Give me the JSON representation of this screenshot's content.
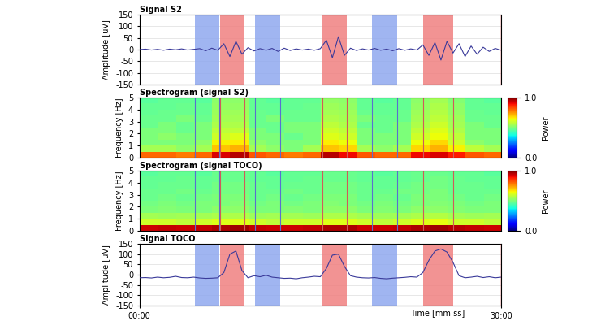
{
  "chart_data": [
    {
      "type": "line",
      "title": "Signal S2",
      "y_label": "Amplitude [uV]",
      "xlim": [
        0,
        30
      ],
      "ylim": [
        -150,
        150
      ],
      "yticks": [
        -150,
        -100,
        -50,
        0,
        50,
        100,
        150
      ],
      "grid": true,
      "tick_labels": "y",
      "color": "#3a3a9a",
      "x": [
        0,
        0.5,
        1,
        1.5,
        2,
        2.5,
        3,
        3.5,
        4,
        4.5,
        5,
        5.5,
        6,
        6.5,
        7,
        7.5,
        8,
        8.5,
        9,
        9.5,
        10,
        10.5,
        11,
        11.5,
        12,
        12.5,
        13,
        13.5,
        14,
        14.5,
        15,
        15.5,
        16,
        16.5,
        17,
        17.5,
        18,
        18.5,
        19,
        19.5,
        20,
        20.5,
        21,
        21.5,
        22,
        22.5,
        23,
        23.5,
        24,
        24.5,
        25,
        25.5,
        26,
        26.5,
        27,
        27.5,
        28,
        28.5,
        29,
        29.5,
        30
      ],
      "values": [
        0,
        2,
        -2,
        1,
        -3,
        2,
        -1,
        3,
        -2,
        1,
        4,
        -5,
        6,
        -3,
        25,
        -30,
        35,
        -20,
        8,
        -6,
        4,
        -3,
        5,
        -8,
        6,
        -4,
        3,
        -2,
        2,
        -3,
        4,
        40,
        -35,
        55,
        -25,
        6,
        -4,
        3,
        -2,
        5,
        -3,
        2,
        -5,
        4,
        -3,
        3,
        -2,
        20,
        -25,
        30,
        -45,
        35,
        -15,
        25,
        -30,
        15,
        -20,
        10,
        -8,
        5,
        -3
      ],
      "bands": [
        {
          "start": 4.6,
          "end": 6.6,
          "color": "#8fa8ef"
        },
        {
          "start": 6.7,
          "end": 8.7,
          "color": "#f08080"
        },
        {
          "start": 9.6,
          "end": 11.7,
          "color": "#8fa8ef"
        },
        {
          "start": 15.2,
          "end": 17.2,
          "color": "#f08080"
        },
        {
          "start": 19.3,
          "end": 21.4,
          "color": "#8fa8ef"
        },
        {
          "start": 23.5,
          "end": 26.0,
          "color": "#f08080"
        }
      ],
      "cursor": 30
    },
    {
      "type": "heatmap",
      "title": "Spectrogram (signal S2)",
      "y_label": "Frequency [Hz]",
      "xlim": [
        0,
        30
      ],
      "ylim": [
        0,
        5
      ],
      "yticks": [
        0,
        1,
        2,
        3,
        4,
        5
      ],
      "tick_labels": "y",
      "cells": [
        [
          0.8,
          0.8,
          0.78,
          0.8,
          0.92,
          0.95,
          0.82,
          0.8,
          0.78,
          0.8,
          0.95,
          0.9,
          0.82,
          0.8,
          0.8,
          0.9,
          0.92,
          0.88,
          0.82,
          0.8
        ],
        [
          0.55,
          0.55,
          0.52,
          0.55,
          0.7,
          0.72,
          0.55,
          0.52,
          0.5,
          0.55,
          0.7,
          0.68,
          0.55,
          0.52,
          0.55,
          0.68,
          0.72,
          0.65,
          0.58,
          0.55
        ],
        [
          0.5,
          0.5,
          0.5,
          0.52,
          0.65,
          0.66,
          0.52,
          0.5,
          0.5,
          0.5,
          0.66,
          0.64,
          0.5,
          0.5,
          0.5,
          0.64,
          0.68,
          0.6,
          0.52,
          0.5
        ],
        [
          0.5,
          0.52,
          0.5,
          0.5,
          0.6,
          0.62,
          0.5,
          0.5,
          0.48,
          0.5,
          0.62,
          0.6,
          0.5,
          0.5,
          0.5,
          0.6,
          0.64,
          0.58,
          0.5,
          0.5
        ],
        [
          0.5,
          0.5,
          0.48,
          0.5,
          0.58,
          0.58,
          0.5,
          0.48,
          0.5,
          0.5,
          0.6,
          0.58,
          0.5,
          0.48,
          0.5,
          0.58,
          0.62,
          0.56,
          0.5,
          0.5
        ],
        [
          0.48,
          0.5,
          0.48,
          0.5,
          0.56,
          0.56,
          0.48,
          0.48,
          0.5,
          0.5,
          0.58,
          0.56,
          0.48,
          0.48,
          0.5,
          0.56,
          0.6,
          0.55,
          0.5,
          0.48
        ],
        [
          0.48,
          0.48,
          0.5,
          0.48,
          0.55,
          0.55,
          0.48,
          0.5,
          0.48,
          0.48,
          0.56,
          0.55,
          0.5,
          0.48,
          0.48,
          0.55,
          0.58,
          0.54,
          0.48,
          0.48
        ],
        [
          0.47,
          0.48,
          0.48,
          0.47,
          0.54,
          0.54,
          0.48,
          0.47,
          0.48,
          0.48,
          0.55,
          0.54,
          0.48,
          0.47,
          0.48,
          0.54,
          0.57,
          0.53,
          0.48,
          0.47
        ],
        [
          0.47,
          0.47,
          0.48,
          0.47,
          0.53,
          0.53,
          0.47,
          0.47,
          0.47,
          0.48,
          0.54,
          0.53,
          0.47,
          0.47,
          0.47,
          0.53,
          0.56,
          0.52,
          0.47,
          0.47
        ],
        [
          0.46,
          0.47,
          0.47,
          0.46,
          0.52,
          0.52,
          0.47,
          0.46,
          0.47,
          0.47,
          0.53,
          0.52,
          0.47,
          0.46,
          0.47,
          0.52,
          0.55,
          0.51,
          0.47,
          0.46
        ]
      ],
      "colorbar": {
        "label": "Power",
        "range": [
          0,
          1
        ],
        "ticks": [
          {
            "value": 0,
            "label": "0.0"
          },
          {
            "value": 1,
            "label": "1.0"
          }
        ]
      },
      "bands": [
        {
          "start": 4.6,
          "end": 6.6,
          "color": "#5a6fd0"
        },
        {
          "start": 6.7,
          "end": 8.7,
          "color": "#d05a5a"
        },
        {
          "start": 9.6,
          "end": 11.7,
          "color": "#5a6fd0"
        },
        {
          "start": 15.2,
          "end": 17.2,
          "color": "#d05a5a"
        },
        {
          "start": 19.3,
          "end": 21.4,
          "color": "#5a6fd0"
        },
        {
          "start": 23.5,
          "end": 26.0,
          "color": "#d05a5a"
        }
      ]
    },
    {
      "type": "heatmap",
      "title": "Spectrogram (signal TOCO)",
      "y_label": "Frequency [Hz]",
      "xlim": [
        0,
        30
      ],
      "ylim": [
        0,
        5
      ],
      "yticks": [
        0,
        1,
        2,
        3,
        4,
        5
      ],
      "tick_labels": "y",
      "cells": [
        [
          0.93,
          0.94,
          0.93,
          0.94,
          0.96,
          0.97,
          0.94,
          0.93,
          0.93,
          0.94,
          0.96,
          0.96,
          0.93,
          0.93,
          0.94,
          0.96,
          0.97,
          0.95,
          0.94,
          0.93
        ],
        [
          0.6,
          0.6,
          0.58,
          0.6,
          0.62,
          0.62,
          0.6,
          0.58,
          0.6,
          0.6,
          0.62,
          0.62,
          0.6,
          0.58,
          0.6,
          0.62,
          0.63,
          0.6,
          0.6,
          0.58
        ],
        [
          0.55,
          0.54,
          0.55,
          0.55,
          0.56,
          0.56,
          0.54,
          0.55,
          0.55,
          0.54,
          0.56,
          0.56,
          0.55,
          0.54,
          0.55,
          0.56,
          0.57,
          0.55,
          0.54,
          0.55
        ],
        [
          0.5,
          0.51,
          0.5,
          0.5,
          0.52,
          0.52,
          0.5,
          0.5,
          0.51,
          0.5,
          0.52,
          0.52,
          0.5,
          0.51,
          0.5,
          0.52,
          0.52,
          0.51,
          0.5,
          0.5
        ],
        [
          0.49,
          0.5,
          0.49,
          0.5,
          0.5,
          0.51,
          0.49,
          0.5,
          0.49,
          0.5,
          0.51,
          0.5,
          0.49,
          0.5,
          0.49,
          0.5,
          0.51,
          0.5,
          0.49,
          0.5
        ],
        [
          0.48,
          0.49,
          0.48,
          0.49,
          0.5,
          0.5,
          0.48,
          0.49,
          0.48,
          0.49,
          0.5,
          0.5,
          0.48,
          0.49,
          0.48,
          0.5,
          0.5,
          0.49,
          0.48,
          0.49
        ],
        [
          0.48,
          0.48,
          0.49,
          0.48,
          0.49,
          0.49,
          0.48,
          0.48,
          0.49,
          0.48,
          0.49,
          0.49,
          0.48,
          0.48,
          0.49,
          0.49,
          0.5,
          0.48,
          0.48,
          0.48
        ],
        [
          0.47,
          0.48,
          0.48,
          0.47,
          0.49,
          0.49,
          0.48,
          0.47,
          0.48,
          0.48,
          0.49,
          0.49,
          0.48,
          0.47,
          0.48,
          0.49,
          0.49,
          0.48,
          0.48,
          0.47
        ],
        [
          0.47,
          0.47,
          0.48,
          0.47,
          0.48,
          0.48,
          0.47,
          0.47,
          0.47,
          0.48,
          0.48,
          0.48,
          0.47,
          0.47,
          0.47,
          0.48,
          0.49,
          0.48,
          0.47,
          0.47
        ],
        [
          0.46,
          0.47,
          0.47,
          0.46,
          0.48,
          0.48,
          0.47,
          0.46,
          0.47,
          0.47,
          0.48,
          0.48,
          0.47,
          0.46,
          0.47,
          0.48,
          0.48,
          0.47,
          0.47,
          0.46
        ]
      ],
      "colorbar": {
        "label": "Power",
        "range": [
          0,
          1
        ],
        "ticks": [
          {
            "value": 0,
            "label": "0.0"
          },
          {
            "value": 1,
            "label": "1.0"
          }
        ]
      },
      "bands": [
        {
          "start": 4.6,
          "end": 6.6,
          "color": "#5a6fd0"
        },
        {
          "start": 6.7,
          "end": 8.7,
          "color": "#d05a5a"
        },
        {
          "start": 9.6,
          "end": 11.7,
          "color": "#5a6fd0"
        },
        {
          "start": 15.2,
          "end": 17.2,
          "color": "#d05a5a"
        },
        {
          "start": 19.3,
          "end": 21.4,
          "color": "#5a6fd0"
        },
        {
          "start": 23.5,
          "end": 26.0,
          "color": "#d05a5a"
        }
      ]
    },
    {
      "type": "line",
      "title": "Signal TOCO",
      "y_label": "Amplitude [uV]",
      "x_label": "Time [mm:ss]",
      "xlim": [
        0,
        30
      ],
      "xticks": [
        {
          "value": 0,
          "label": "00:00"
        },
        {
          "value": 30,
          "label": "30:00"
        }
      ],
      "ylim": [
        -150,
        150
      ],
      "yticks": [
        -150,
        -100,
        -50,
        0,
        50,
        100,
        150
      ],
      "grid": true,
      "tick_labels": true,
      "color": "#3a3a9a",
      "x": [
        0,
        0.5,
        1,
        1.5,
        2,
        2.5,
        3,
        3.5,
        4,
        4.5,
        5,
        5.5,
        6,
        6.5,
        7,
        7.5,
        8,
        8.5,
        9,
        9.5,
        10,
        10.5,
        11,
        11.5,
        12,
        12.5,
        13,
        13.5,
        14,
        14.5,
        15,
        15.5,
        16,
        16.5,
        17,
        17.5,
        18,
        18.5,
        19,
        19.5,
        20,
        20.5,
        21,
        21.5,
        22,
        22.5,
        23,
        23.5,
        24,
        24.5,
        25,
        25.5,
        26,
        26.5,
        27,
        27.5,
        28,
        28.5,
        29,
        29.5,
        30
      ],
      "values": [
        -15,
        -14,
        -16,
        -12,
        -15,
        -13,
        -8,
        -14,
        -15,
        -12,
        -16,
        -18,
        -17,
        -15,
        10,
        100,
        115,
        20,
        -15,
        -5,
        -10,
        -3,
        -12,
        -15,
        -18,
        -17,
        -20,
        -15,
        -12,
        -8,
        -10,
        30,
        95,
        100,
        40,
        -5,
        -12,
        -15,
        -16,
        -14,
        -18,
        -20,
        -17,
        -15,
        -13,
        -10,
        -12,
        10,
        70,
        115,
        125,
        110,
        60,
        -5,
        -15,
        -12,
        -8,
        -14,
        -10,
        -15,
        -12
      ],
      "bands": [
        {
          "start": 4.6,
          "end": 6.6,
          "color": "#8fa8ef"
        },
        {
          "start": 6.7,
          "end": 8.7,
          "color": "#f08080"
        },
        {
          "start": 9.6,
          "end": 11.7,
          "color": "#8fa8ef"
        },
        {
          "start": 15.2,
          "end": 17.2,
          "color": "#f08080"
        },
        {
          "start": 19.3,
          "end": 21.4,
          "color": "#8fa8ef"
        },
        {
          "start": 23.5,
          "end": 26.0,
          "color": "#f08080"
        }
      ],
      "cursor": 30
    }
  ]
}
